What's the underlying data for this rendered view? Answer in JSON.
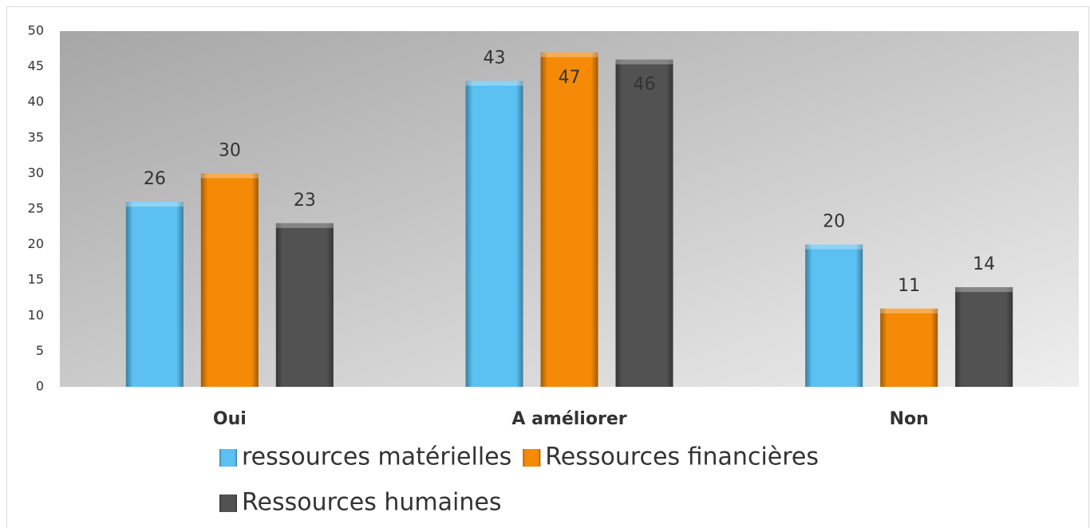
{
  "chart_data": {
    "type": "bar",
    "categories": [
      "Oui",
      "A améliorer",
      "Non"
    ],
    "series": [
      {
        "name": "ressources matérielles",
        "color": "#5bc0f2",
        "values": [
          26,
          43,
          20
        ]
      },
      {
        "name": "Ressources financières",
        "color": "#f58a07",
        "values": [
          30,
          47,
          11
        ]
      },
      {
        "name": "Ressources humaines",
        "color": "#525252",
        "values": [
          23,
          46,
          14
        ]
      }
    ],
    "ylim": [
      0,
      50
    ],
    "yticks": [
      0,
      5,
      10,
      15,
      20,
      25,
      30,
      35,
      40,
      45,
      50
    ],
    "legend": "bottom"
  }
}
